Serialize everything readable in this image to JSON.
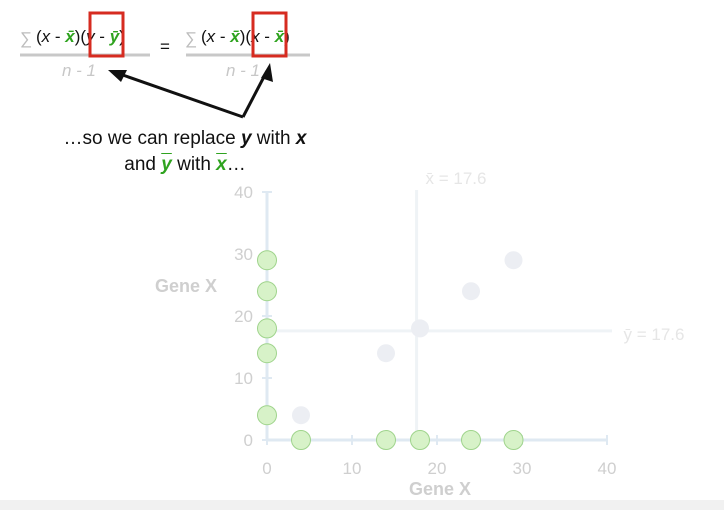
{
  "formula": {
    "sigma": "∑",
    "left_numerator": [
      "(",
      "x",
      " - ",
      "x̄",
      ")(",
      "y",
      " - ",
      "ȳ",
      ")"
    ],
    "left_denominator": "n - 1",
    "equals": "=",
    "right_numerator": [
      "(",
      "x",
      " - ",
      "x̄",
      ")(",
      "x",
      " - ",
      "x̄",
      ")"
    ],
    "right_denominator": "n - 1"
  },
  "caption": {
    "line1_pre": "…so we can replace ",
    "line1_var1": "y",
    "line1_mid": " with ",
    "line1_var2": "x",
    "line2_pre": "and ",
    "line2_var1": "y",
    "line2_mid": " with ",
    "line2_var2": "x",
    "line2_post": "…"
  },
  "chart_data": {
    "type": "scatter",
    "xlabel": "Gene X",
    "ylabel": "Gene X",
    "xlim": [
      0,
      40
    ],
    "ylim": [
      0,
      40
    ],
    "x_ticks": [
      "0",
      "10",
      "20",
      "30",
      "40"
    ],
    "y_ticks": [
      "0",
      "10",
      "20",
      "30",
      "40"
    ],
    "mean_x_label": "x̄ = 17.6",
    "mean_y_label": "ȳ = 17.6",
    "mean_x": 17.6,
    "mean_y": 17.6,
    "faded_points": [
      [
        4,
        4
      ],
      [
        14,
        14
      ],
      [
        18,
        18
      ],
      [
        24,
        24
      ],
      [
        29,
        29
      ]
    ],
    "x_axis_points": [
      4,
      14,
      18,
      24,
      29
    ],
    "y_axis_points": [
      4,
      14,
      18,
      24,
      29
    ]
  },
  "colors": {
    "highlight_box": "#d62b20",
    "green_var": "#2fa31f",
    "point_fill": "#d7f2c8",
    "point_stroke": "#9fd48c",
    "faded_point": "#eceef3",
    "axis": "#dfe9f2",
    "faded_text": "#cfcfcf"
  }
}
